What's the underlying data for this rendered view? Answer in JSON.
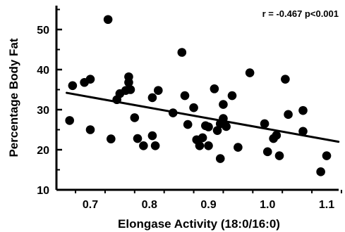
{
  "chart_data": {
    "type": "scatter",
    "xlabel": "Elongase Activity (18:0/16:0)",
    "ylabel": "Percentage Body Fat",
    "annotation": "r = -0.467  p<0.001",
    "xlim": [
      0.66,
      1.12
    ],
    "ylim": [
      10,
      55
    ],
    "x_ticks": [
      0.7,
      0.8,
      0.9,
      1.0,
      1.1
    ],
    "x_tick_labels": [
      "0.7",
      "0.8",
      "0.9",
      "1.0",
      "1.1"
    ],
    "y_ticks": [
      10,
      20,
      30,
      40,
      50
    ],
    "y_tick_labels": [
      "10",
      "20",
      "30",
      "40",
      "50"
    ],
    "grid": false,
    "regression_line": {
      "x": [
        0.66,
        1.12
      ],
      "y": [
        34.2,
        22.0
      ]
    },
    "points": [
      {
        "x": 0.665,
        "y": 27.3
      },
      {
        "x": 0.67,
        "y": 36.0
      },
      {
        "x": 0.69,
        "y": 36.8
      },
      {
        "x": 0.7,
        "y": 37.6
      },
      {
        "x": 0.7,
        "y": 25.0
      },
      {
        "x": 0.73,
        "y": 52.5
      },
      {
        "x": 0.735,
        "y": 22.7
      },
      {
        "x": 0.745,
        "y": 32.5
      },
      {
        "x": 0.75,
        "y": 34.0
      },
      {
        "x": 0.76,
        "y": 34.8
      },
      {
        "x": 0.765,
        "y": 38.2
      },
      {
        "x": 0.765,
        "y": 36.8
      },
      {
        "x": 0.768,
        "y": 35.0
      },
      {
        "x": 0.775,
        "y": 28.0
      },
      {
        "x": 0.78,
        "y": 22.8
      },
      {
        "x": 0.79,
        "y": 21.0
      },
      {
        "x": 0.805,
        "y": 33.0
      },
      {
        "x": 0.805,
        "y": 23.5
      },
      {
        "x": 0.81,
        "y": 21.0
      },
      {
        "x": 0.815,
        "y": 34.8
      },
      {
        "x": 0.84,
        "y": 29.2
      },
      {
        "x": 0.855,
        "y": 44.3
      },
      {
        "x": 0.86,
        "y": 33.5
      },
      {
        "x": 0.865,
        "y": 26.3
      },
      {
        "x": 0.875,
        "y": 30.5
      },
      {
        "x": 0.88,
        "y": 22.5
      },
      {
        "x": 0.885,
        "y": 21.0
      },
      {
        "x": 0.89,
        "y": 23.0
      },
      {
        "x": 0.895,
        "y": 26.0
      },
      {
        "x": 0.9,
        "y": 25.7
      },
      {
        "x": 0.9,
        "y": 21.0
      },
      {
        "x": 0.91,
        "y": 35.2
      },
      {
        "x": 0.915,
        "y": 24.8
      },
      {
        "x": 0.92,
        "y": 26.5
      },
      {
        "x": 0.92,
        "y": 17.8
      },
      {
        "x": 0.925,
        "y": 31.3
      },
      {
        "x": 0.925,
        "y": 27.8
      },
      {
        "x": 0.93,
        "y": 25.8
      },
      {
        "x": 0.94,
        "y": 33.5
      },
      {
        "x": 0.95,
        "y": 20.6
      },
      {
        "x": 0.97,
        "y": 39.2
      },
      {
        "x": 0.995,
        "y": 26.5
      },
      {
        "x": 1.0,
        "y": 19.5
      },
      {
        "x": 1.01,
        "y": 22.8
      },
      {
        "x": 1.015,
        "y": 23.6
      },
      {
        "x": 1.02,
        "y": 18.5
      },
      {
        "x": 1.03,
        "y": 37.6
      },
      {
        "x": 1.035,
        "y": 28.8
      },
      {
        "x": 1.06,
        "y": 29.8
      },
      {
        "x": 1.06,
        "y": 24.6
      },
      {
        "x": 1.09,
        "y": 14.5
      },
      {
        "x": 1.1,
        "y": 18.5
      }
    ]
  }
}
